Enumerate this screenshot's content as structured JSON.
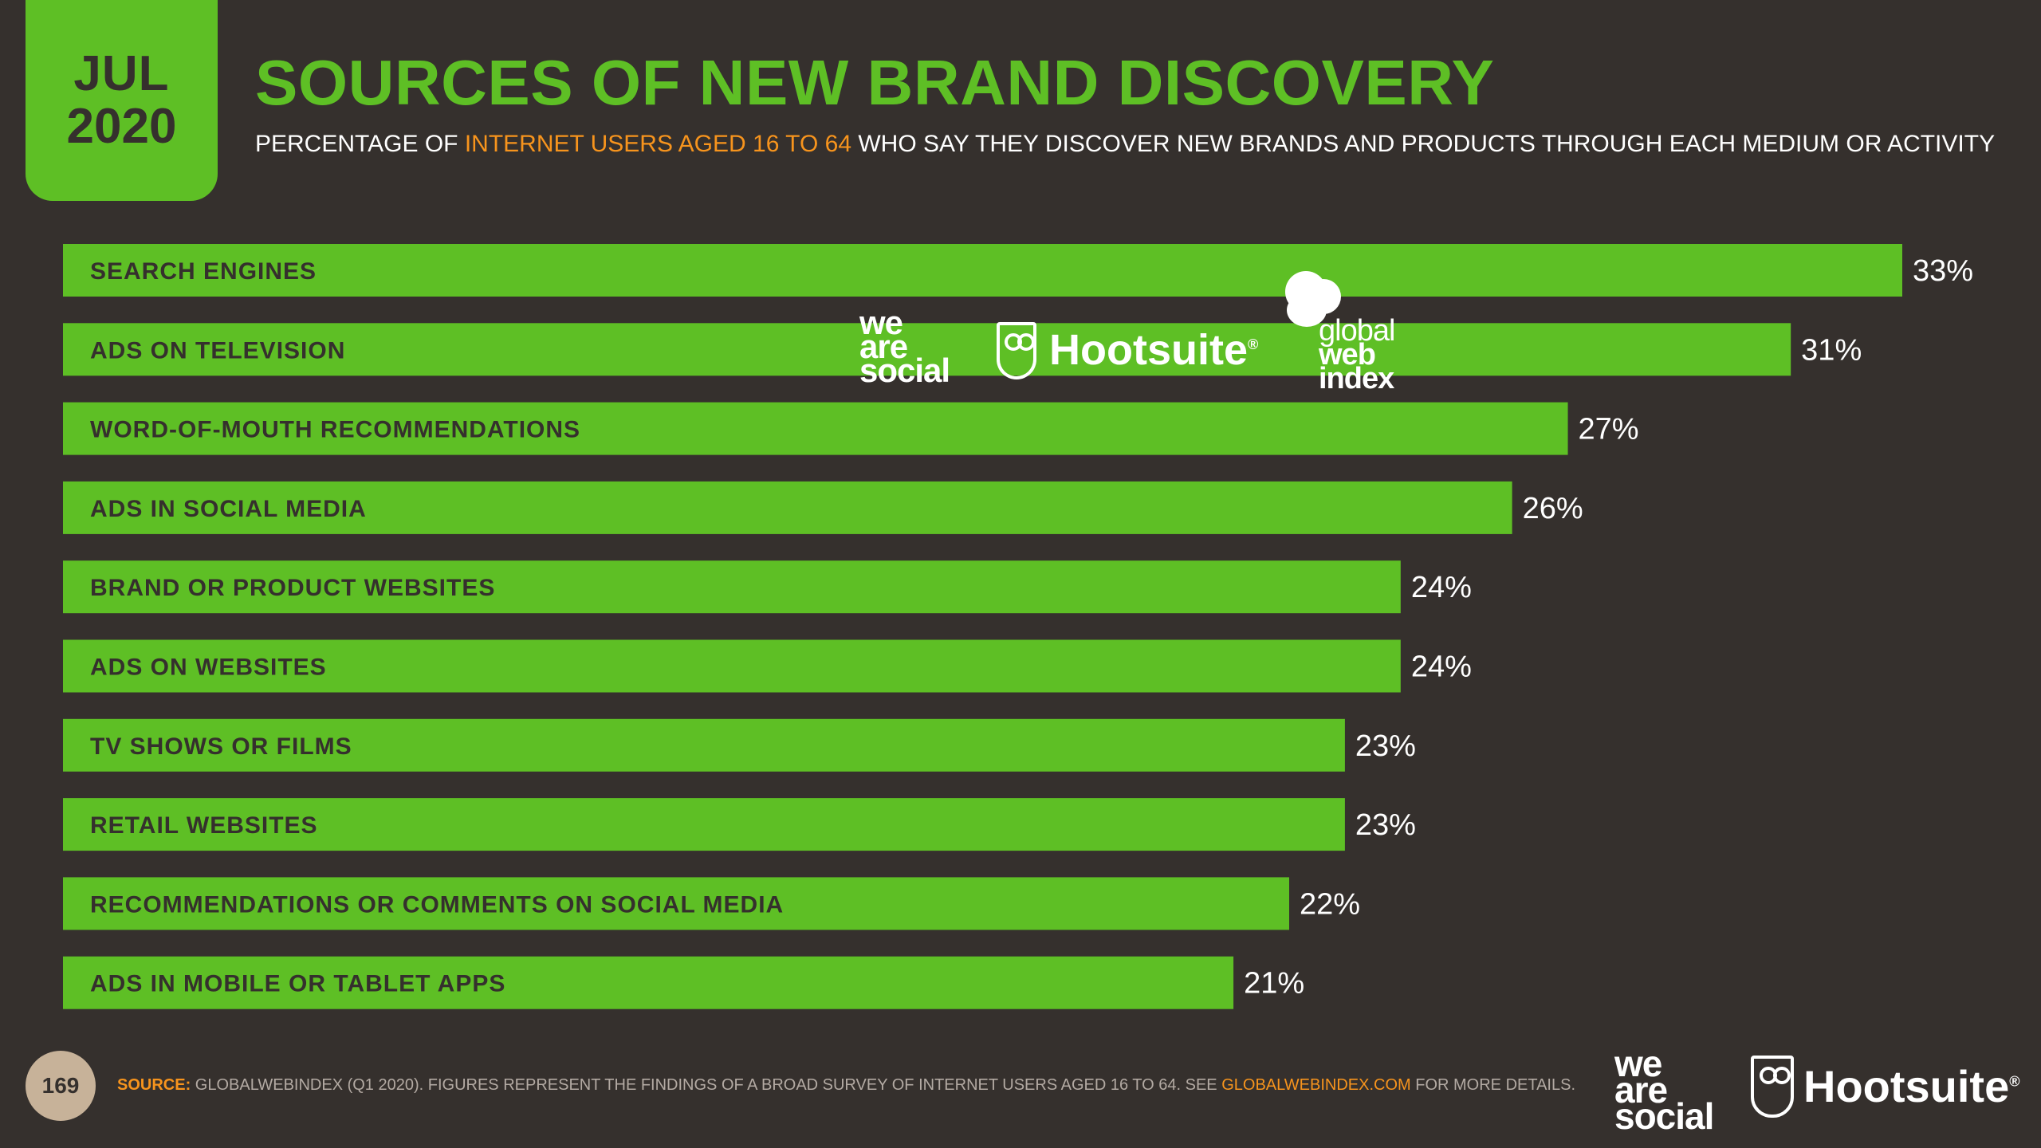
{
  "header": {
    "month": "JUL",
    "year": "2020",
    "title": "SOURCES OF NEW BRAND DISCOVERY",
    "subtitle_pre": "PERCENTAGE OF",
    "subtitle_highlight": "INTERNET USERS AGED 16 TO 64",
    "subtitle_post": "WHO SAY THEY DISCOVER NEW BRANDS AND PRODUCTS THROUGH EACH MEDIUM OR ACTIVITY"
  },
  "logos": {
    "we_are_social": [
      "we",
      "are",
      "social"
    ],
    "hootsuite": "Hootsuite",
    "registered": "®",
    "gwi": [
      "global",
      "web",
      "index"
    ]
  },
  "colors": {
    "background": "#35302d",
    "bar": "#5ebf25",
    "accent": "#f7941d",
    "value_text": "#ffffff",
    "bar_label": "#35302d"
  },
  "chart_data": {
    "type": "bar",
    "orientation": "horizontal",
    "title": "SOURCES OF NEW BRAND DISCOVERY",
    "xlabel": "",
    "ylabel": "",
    "xlim": [
      0,
      33
    ],
    "grid": false,
    "categories": [
      "SEARCH ENGINES",
      "ADS ON TELEVISION",
      "WORD-OF-MOUTH RECOMMENDATIONS",
      "ADS IN SOCIAL MEDIA",
      "BRAND OR PRODUCT WEBSITES",
      "ADS ON WEBSITES",
      "TV SHOWS OR FILMS",
      "RETAIL WEBSITES",
      "RECOMMENDATIONS OR COMMENTS ON SOCIAL MEDIA",
      "ADS IN MOBILE OR TABLET APPS"
    ],
    "values": [
      33,
      31,
      27,
      26,
      24,
      24,
      23,
      23,
      22,
      21
    ],
    "value_labels": [
      "33%",
      "31%",
      "27%",
      "26%",
      "24%",
      "24%",
      "23%",
      "23%",
      "22%",
      "21%"
    ]
  },
  "footer": {
    "page_number": "169",
    "source_label": "SOURCE:",
    "source_text": "GLOBALWEBINDEX (Q1 2020). FIGURES REPRESENT THE FINDINGS OF A BROAD SURVEY OF INTERNET USERS AGED 16 TO 64. SEE",
    "source_link": "GLOBALWEBINDEX.COM",
    "source_tail": "FOR MORE DETAILS."
  }
}
